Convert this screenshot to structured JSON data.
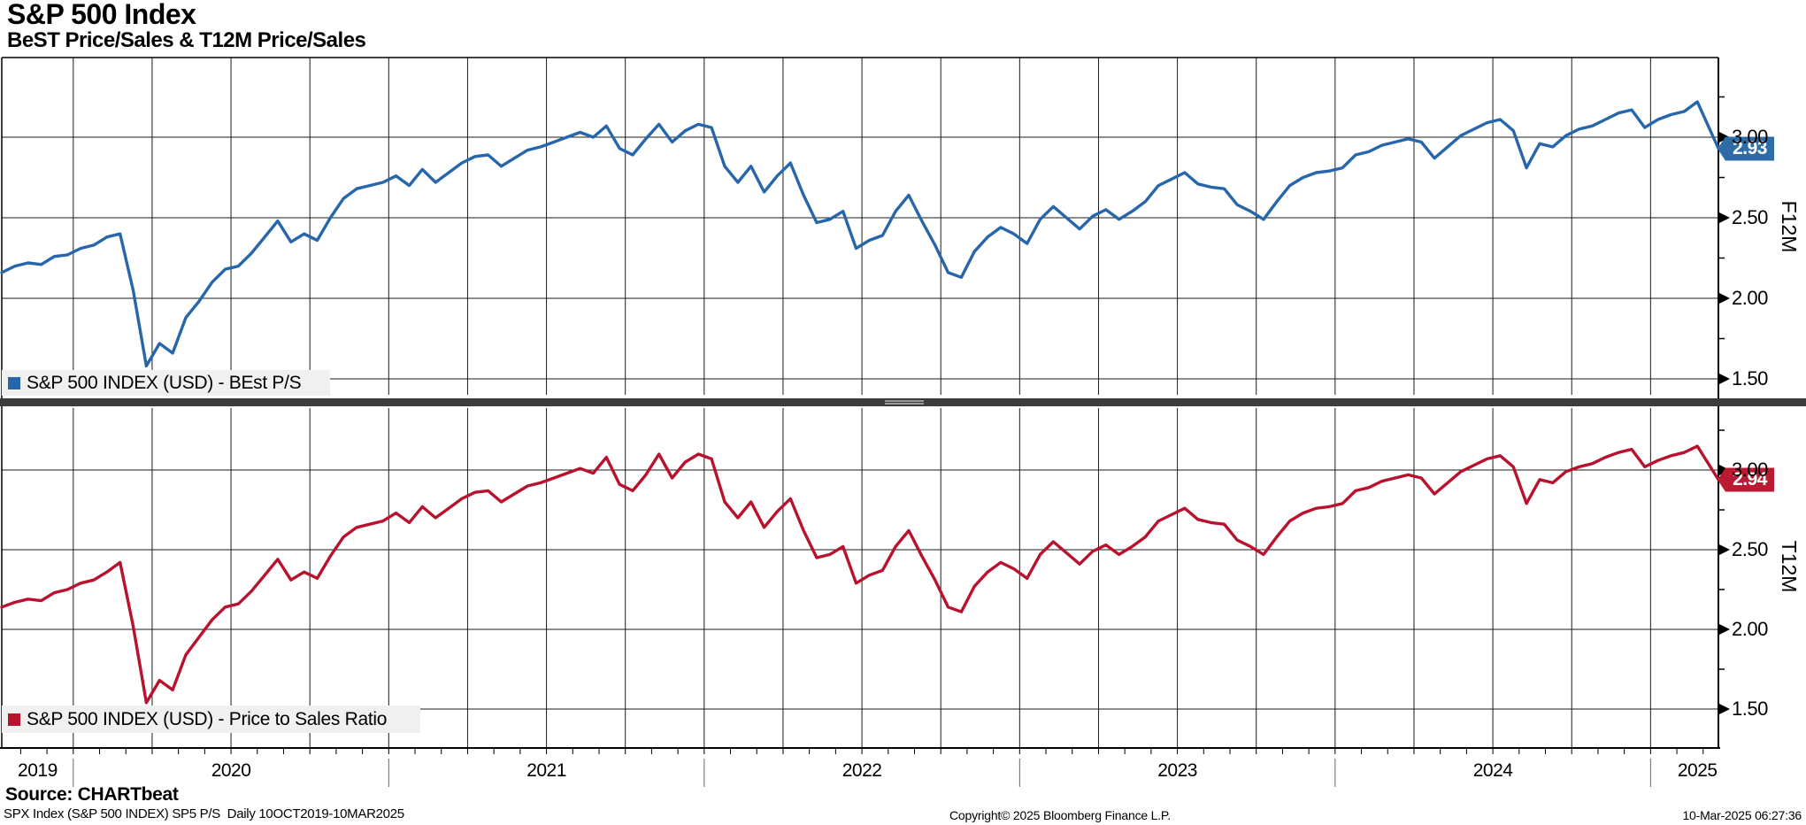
{
  "header": {
    "title": "S&P 500 Index",
    "subtitle": "BeST Price/Sales & T12M Price/Sales"
  },
  "footer": {
    "source": "Source: CHARTbeat",
    "descriptor": "SPX Index (S&P 500 INDEX) SP5 P/S  Daily 10OCT2019-10MAR2025",
    "copyright": "Copyright© 2025 Bloomberg Finance L.P.",
    "timestamp": "10-Mar-2025 06:27:36"
  },
  "colors": {
    "grid": "#1c1c1c",
    "divider_bar": "#3c3c3c",
    "divider_handle": "#b5b5b5",
    "legend_bg": "#f0f0f0",
    "axis": "#000000"
  },
  "x_axis": {
    "range_label": "10OCT2019-10MAR2025",
    "total_months": 65.3,
    "quarter_first_month": 2.72,
    "quarter_step": 3,
    "month_first_offset": 0.72,
    "year_starts_months": [
      2.72,
      14.72,
      26.72,
      38.72,
      50.72,
      62.72
    ],
    "years": [
      {
        "label": "2019",
        "center_month": 1.36
      },
      {
        "label": "2020",
        "center_month": 8.72
      },
      {
        "label": "2021",
        "center_month": 20.72
      },
      {
        "label": "2022",
        "center_month": 32.72
      },
      {
        "label": "2023",
        "center_month": 44.72
      },
      {
        "label": "2024",
        "center_month": 56.72
      },
      {
        "label": "2025",
        "center_month": 64.5
      }
    ]
  },
  "chart_data": [
    {
      "type": "line",
      "panel": "top",
      "legend_label": "S&P 500 INDEX (USD) - BEst P/S",
      "axis_label": "F12M",
      "color": "#2766ab",
      "flag_color": "#2e6ca8",
      "last_value": 2.93,
      "last_value_label": "2.93",
      "ylim": [
        1.4,
        3.49
      ],
      "grid": true,
      "legend_position": "bottom-left",
      "y_tick_labels": [
        "3.00",
        "2.50",
        "2.00",
        "1.50"
      ],
      "y_tick_values": [
        3.0,
        2.5,
        2.0,
        1.5
      ],
      "y_minor_ticks": [
        3.25,
        2.75,
        2.25,
        1.75
      ],
      "x_start": 0,
      "x_step": 0.5,
      "x_end": 65.3,
      "values": [
        2.16,
        2.2,
        2.22,
        2.21,
        2.26,
        2.27,
        2.31,
        2.33,
        2.38,
        2.4,
        2.05,
        1.58,
        1.72,
        1.66,
        1.88,
        1.98,
        2.1,
        2.18,
        2.2,
        2.28,
        2.38,
        2.48,
        2.35,
        2.4,
        2.36,
        2.5,
        2.62,
        2.68,
        2.7,
        2.72,
        2.76,
        2.7,
        2.8,
        2.72,
        2.78,
        2.84,
        2.88,
        2.89,
        2.82,
        2.87,
        2.92,
        2.94,
        2.97,
        3.0,
        3.03,
        3.0,
        3.07,
        2.93,
        2.89,
        2.99,
        3.08,
        2.97,
        3.04,
        3.08,
        3.06,
        2.82,
        2.72,
        2.82,
        2.66,
        2.76,
        2.84,
        2.64,
        2.47,
        2.49,
        2.54,
        2.31,
        2.36,
        2.39,
        2.54,
        2.64,
        2.48,
        2.33,
        2.16,
        2.13,
        2.29,
        2.38,
        2.44,
        2.4,
        2.34,
        2.49,
        2.57,
        2.5,
        2.43,
        2.51,
        2.55,
        2.49,
        2.54,
        2.6,
        2.7,
        2.74,
        2.78,
        2.71,
        2.69,
        2.68,
        2.58,
        2.54,
        2.49,
        2.6,
        2.7,
        2.75,
        2.78,
        2.79,
        2.81,
        2.89,
        2.91,
        2.95,
        2.97,
        2.99,
        2.97,
        2.87,
        2.94,
        3.01,
        3.05,
        3.09,
        3.11,
        3.04,
        2.81,
        2.96,
        2.94,
        3.01,
        3.05,
        3.07,
        3.11,
        3.15,
        3.17,
        3.06,
        3.11,
        3.14,
        3.16,
        3.22,
        2.93
      ]
    },
    {
      "type": "line",
      "panel": "bottom",
      "legend_label": "S&P 500 INDEX (USD) - Price to Sales Ratio",
      "axis_label": "T12M",
      "color": "#b8122e",
      "flag_color": "#bb1a33",
      "last_value": 2.94,
      "last_value_label": "2.94",
      "ylim": [
        1.28,
        3.38
      ],
      "grid": true,
      "legend_position": "bottom-left",
      "y_tick_labels": [
        "3.00",
        "2.50",
        "2.00",
        "1.50"
      ],
      "y_tick_values": [
        3.0,
        2.5,
        2.0,
        1.5
      ],
      "y_minor_ticks": [
        3.25,
        2.75,
        2.25,
        1.75
      ],
      "x_start": 0,
      "x_step": 0.5,
      "x_end": 65.3,
      "values": [
        2.14,
        2.17,
        2.19,
        2.18,
        2.23,
        2.25,
        2.29,
        2.31,
        2.36,
        2.42,
        2.02,
        1.54,
        1.68,
        1.62,
        1.84,
        1.95,
        2.06,
        2.14,
        2.16,
        2.24,
        2.34,
        2.44,
        2.31,
        2.36,
        2.32,
        2.46,
        2.58,
        2.64,
        2.66,
        2.68,
        2.73,
        2.67,
        2.77,
        2.7,
        2.76,
        2.82,
        2.86,
        2.87,
        2.8,
        2.85,
        2.9,
        2.92,
        2.95,
        2.98,
        3.01,
        2.98,
        3.08,
        2.91,
        2.87,
        2.97,
        3.1,
        2.95,
        3.05,
        3.1,
        3.07,
        2.8,
        2.7,
        2.8,
        2.64,
        2.74,
        2.82,
        2.62,
        2.45,
        2.47,
        2.52,
        2.29,
        2.34,
        2.37,
        2.52,
        2.62,
        2.46,
        2.31,
        2.14,
        2.11,
        2.27,
        2.36,
        2.42,
        2.38,
        2.32,
        2.47,
        2.55,
        2.48,
        2.41,
        2.49,
        2.53,
        2.47,
        2.52,
        2.58,
        2.68,
        2.72,
        2.76,
        2.69,
        2.67,
        2.66,
        2.56,
        2.52,
        2.47,
        2.58,
        2.68,
        2.73,
        2.76,
        2.77,
        2.79,
        2.87,
        2.89,
        2.93,
        2.95,
        2.97,
        2.95,
        2.85,
        2.92,
        2.99,
        3.03,
        3.07,
        3.09,
        3.02,
        2.79,
        2.94,
        2.92,
        2.99,
        3.02,
        3.04,
        3.08,
        3.11,
        3.13,
        3.02,
        3.06,
        3.09,
        3.11,
        3.15,
        2.94
      ]
    }
  ]
}
